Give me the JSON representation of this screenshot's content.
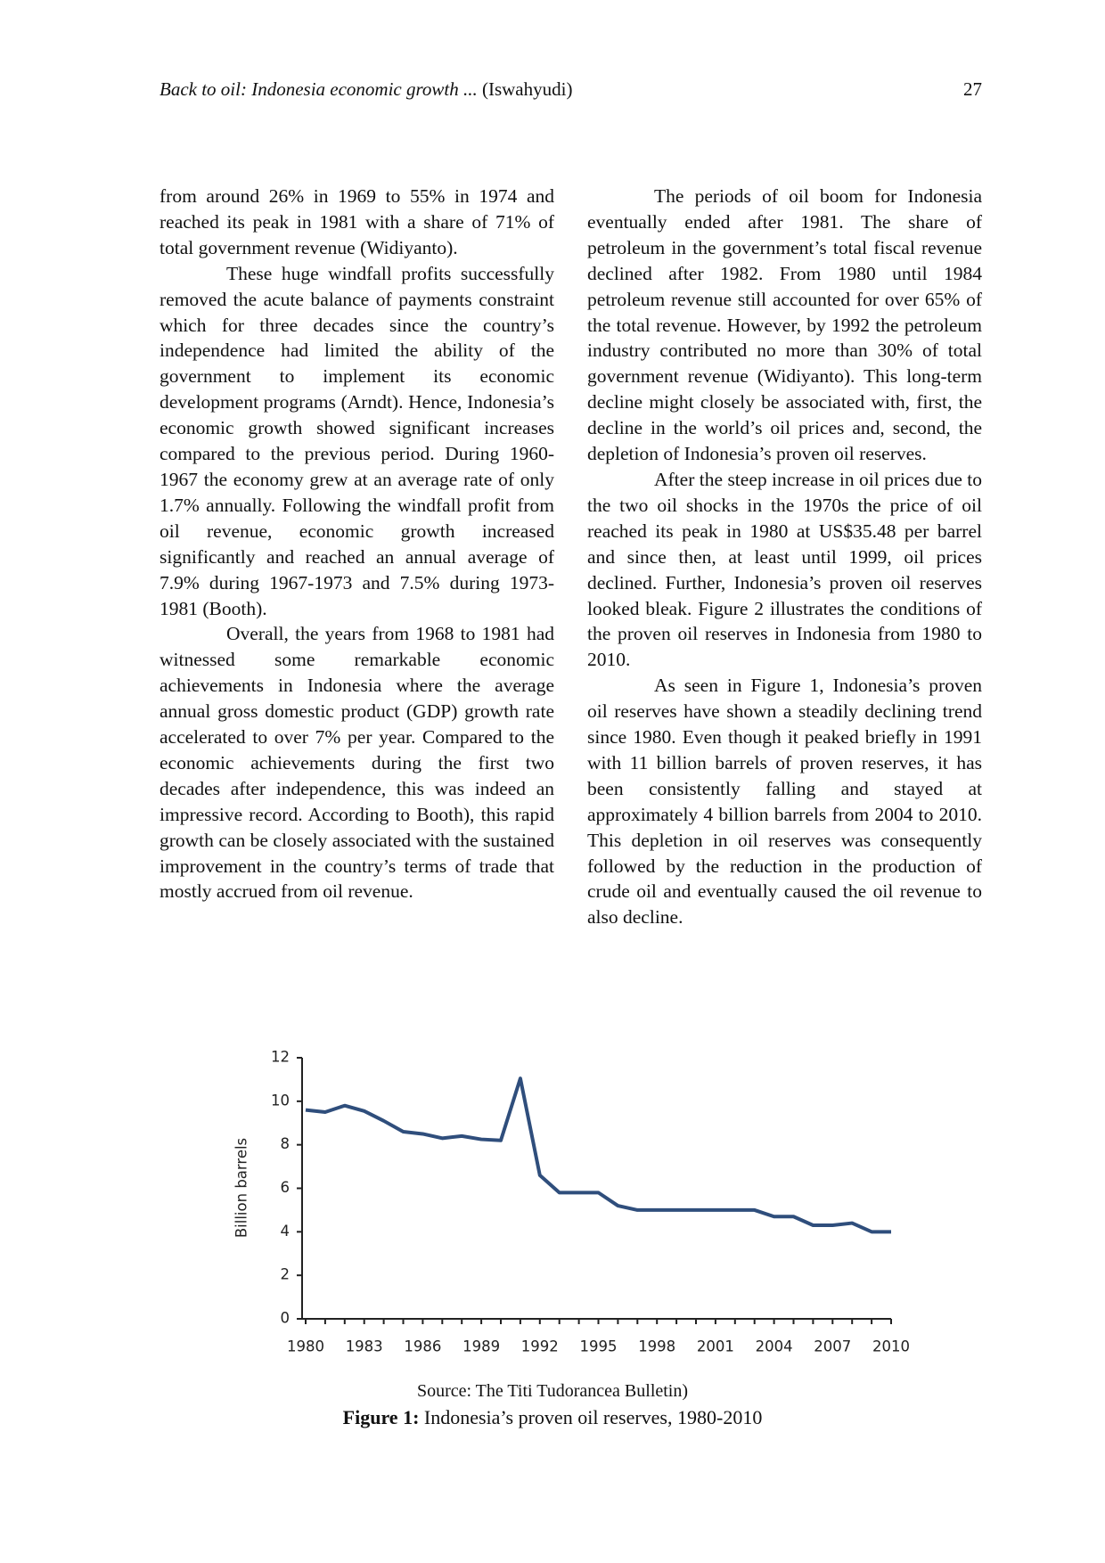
{
  "header": {
    "title": "Back to oil: Indonesia economic growth ...",
    "author": "(Iswahyudi)",
    "page": "27"
  },
  "body": {
    "left": [
      "from around 26% in 1969 to 55% in 1974 and reached its peak in 1981 with a share of 71% of total government revenue (Widiyanto).",
      "These huge windfall profits successfully removed the acute balance of payments constraint which for three decades since the country’s independence had limited the ability of the government to implement its economic development programs (Arndt). Hence, Indonesia’s economic growth showed significant increases compared to the previous period. During 1960-1967 the economy grew at an average rate of only 1.7% annually. Following the windfall profit from oil revenue, economic growth increased significantly and reached an annual average of 7.9% during 1967-1973 and 7.5% during 1973-1981 (Booth).",
      "Overall, the years from 1968 to 1981 had witnessed some remarkable economic achievements in Indonesia where the average annual gross domestic product (GDP) growth rate accelerated to over 7% per year. Compared to the economic achievements during the first two decades after independence, this was indeed an impressive record. According to Booth), this rapid growth can be closely associated with the sustained improvement in the country’s terms of trade that mostly accrued from oil revenue."
    ],
    "right": [
      "The periods of oil boom for Indonesia eventually ended after 1981. The share of petroleum in the government’s total fiscal revenue declined after 1982. From 1980 until 1984 petroleum revenue still accounted for over 65% of the total revenue. However, by 1992 the petroleum industry contributed no more than 30% of total government revenue (Widiyanto). This long-term decline might closely be associated with, first, the decline in the world’s oil prices and, second, the depletion of Indonesia’s proven oil reserves.",
      "After the steep increase in oil prices due to the two oil shocks in the 1970s the price of oil reached its peak in 1980 at US$35.48 per barrel and since then, at least until 1999, oil prices declined. Further, Indonesia’s proven oil reserves looked bleak. Figure 2 illustrates the conditions of the proven oil reserves in Indonesia from 1980 to 2010.",
      "As seen in Figure 1, Indonesia’s proven oil reserves have shown a steadily declining trend since 1980. Even though it peaked briefly in 1991 with 11 billion barrels of proven reserves, it has been consistently falling and stayed at approximately 4 billion barrels from 2004 to 2010. This depletion in oil reserves was consequently followed by the reduction in the production of crude oil and eventually caused the oil revenue to also decline."
    ]
  },
  "chart_data": {
    "type": "line",
    "ylabel": "Billion barrels",
    "color": "#2f4e7c",
    "x": [
      1980,
      1981,
      1982,
      1983,
      1984,
      1985,
      1986,
      1987,
      1988,
      1989,
      1990,
      1991,
      1992,
      1993,
      1994,
      1995,
      1996,
      1997,
      1998,
      1999,
      2000,
      2001,
      2002,
      2003,
      2004,
      2005,
      2006,
      2007,
      2008,
      2009,
      2010
    ],
    "values": [
      9.6,
      9.5,
      9.8,
      9.55,
      9.1,
      8.6,
      8.5,
      8.3,
      8.4,
      8.25,
      8.2,
      11.05,
      6.6,
      5.8,
      5.8,
      5.8,
      5.2,
      5.0,
      5.0,
      5.0,
      5.0,
      5.0,
      5.0,
      5.0,
      4.7,
      4.7,
      4.3,
      4.3,
      4.4,
      4.0,
      4.0
    ],
    "xlim": [
      1980,
      2010
    ],
    "xticks": [
      1980,
      1983,
      1986,
      1989,
      1992,
      1995,
      1998,
      2001,
      2004,
      2007,
      2010
    ],
    "ylim": [
      0,
      12
    ],
    "yticks": [
      0,
      2,
      4,
      6,
      8,
      10,
      12
    ],
    "grid": false
  },
  "figure": {
    "source": "Source: The Titi Tudorancea Bulletin)",
    "label": "Figure 1:",
    "caption": "Indonesia’s proven oil reserves, 1980-2010"
  }
}
